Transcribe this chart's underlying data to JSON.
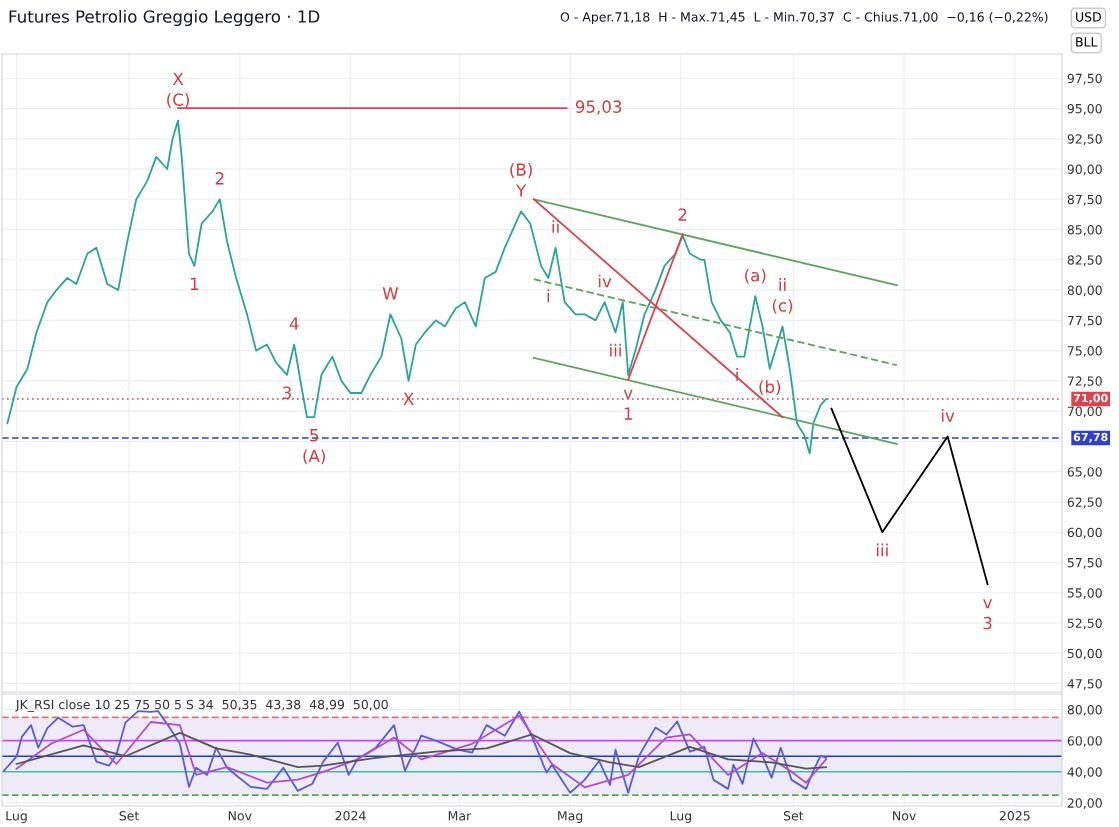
{
  "chart_data": [
    {
      "type": "line",
      "title": "Futures Petrolio Greggio Leggero · 1D",
      "subtitle": "O - Aper.71,18  H - Max.71,45  L - Min.70,37  C - Chius.71,00  −0,16 (−0,22%)",
      "series": [
        {
          "color": "#26a69a",
          "x": [
            "2023-06-26",
            "2023-07-01",
            "2023-07-07",
            "2023-07-12",
            "2023-07-18",
            "2023-07-23",
            "2023-07-29",
            "2023-08-03",
            "2023-08-09",
            "2023-08-14",
            "2023-08-20",
            "2023-08-26",
            "2023-08-31",
            "2023-09-05",
            "2023-09-11",
            "2023-09-16",
            "2023-09-22",
            "2023-09-25",
            "2023-09-28",
            "2023-09-30",
            "2023-10-04",
            "2023-10-07",
            "2023-10-11",
            "2023-10-17",
            "2023-10-21",
            "2023-10-25",
            "2023-10-30",
            "2023-11-05",
            "2023-11-10",
            "2023-11-16",
            "2023-11-21",
            "2023-11-27",
            "2023-12-01",
            "2023-12-05",
            "2023-12-08",
            "2023-12-12",
            "2023-12-16",
            "2023-12-22",
            "2023-12-27",
            "2024-01-01",
            "2024-01-07",
            "2024-01-12",
            "2024-01-18",
            "2024-01-23",
            "2024-01-29",
            "2024-02-02",
            "2024-02-06",
            "2024-02-11",
            "2024-02-17",
            "2024-02-22",
            "2024-02-28",
            "2024-03-04",
            "2024-03-10",
            "2024-03-15",
            "2024-03-21",
            "2024-03-26",
            "2024-04-01",
            "2024-04-04",
            "2024-04-09",
            "2024-04-15",
            "2024-04-19",
            "2024-04-23",
            "2024-04-28",
            "2024-05-04",
            "2024-05-09",
            "2024-05-15",
            "2024-05-20",
            "2024-05-26",
            "2024-05-30",
            "2024-06-02",
            "2024-06-06",
            "2024-06-11",
            "2024-06-17",
            "2024-06-22",
            "2024-06-28",
            "2024-07-02",
            "2024-07-06",
            "2024-07-12",
            "2024-07-14",
            "2024-07-18",
            "2024-07-23",
            "2024-07-28",
            "2024-08-01",
            "2024-08-05",
            "2024-08-11",
            "2024-08-15",
            "2024-08-19",
            "2024-08-22",
            "2024-08-26",
            "2024-08-30",
            "2024-09-03",
            "2024-09-07",
            "2024-09-10",
            "2024-09-12",
            "2024-09-16",
            "2024-09-19"
          ],
          "values": [
            69.0,
            72.0,
            73.5,
            76.5,
            79.0,
            80.0,
            81.0,
            80.5,
            83.0,
            83.5,
            80.5,
            80.0,
            84.0,
            87.5,
            89.0,
            91.0,
            90.0,
            92.5,
            94.0,
            91.0,
            83.0,
            82.0,
            85.5,
            86.5,
            87.5,
            84.0,
            81.0,
            78.0,
            75.0,
            75.5,
            74.0,
            73.0,
            75.5,
            72.0,
            69.5,
            69.5,
            73.0,
            74.5,
            72.5,
            71.5,
            71.5,
            73.0,
            74.5,
            78.0,
            76.0,
            72.5,
            75.5,
            76.5,
            77.5,
            77.0,
            78.5,
            79.0,
            77.0,
            81.0,
            81.5,
            83.5,
            85.5,
            86.5,
            85.5,
            82.0,
            81.0,
            83.5,
            79.0,
            78.0,
            78.0,
            77.5,
            79.0,
            76.5,
            79.0,
            73.0,
            75.0,
            78.0,
            80.0,
            82.0,
            83.0,
            84.5,
            83.0,
            82.5,
            82.5,
            79.0,
            77.5,
            76.5,
            74.5,
            74.5,
            79.5,
            77.0,
            73.5,
            75.0,
            77.0,
            73.5,
            69.0,
            68.0,
            66.5,
            69.0,
            70.5,
            71.0
          ]
        },
        {
          "color": "#e0424b",
          "x": [
            "2023-09-28",
            "2024-04-29"
          ],
          "values": [
            95.03,
            95.03
          ]
        },
        {
          "color": "#5aa55a",
          "x": [
            "2024-04-11",
            "2024-10-28"
          ],
          "values": [
            87.5,
            80.4
          ]
        },
        {
          "color": "#5aa55a",
          "x": [
            "2024-04-11",
            "2024-10-28"
          ],
          "values": [
            74.4,
            67.3
          ]
        },
        {
          "color": "#5aa55a",
          "line_style": "dashed",
          "x": [
            "2024-04-11",
            "2024-10-28"
          ],
          "values": [
            80.9,
            73.8
          ]
        },
        {
          "color": "#e0424b",
          "x": [
            "2024-04-11",
            "2024-08-26"
          ],
          "values": [
            87.5,
            69.5
          ]
        },
        {
          "color": "#e0424b",
          "x": [
            "2024-06-02",
            "2024-07-02"
          ],
          "values": [
            72.6,
            84.6
          ]
        },
        {
          "color": "#000000",
          "x": [
            "2024-09-22",
            "2024-10-20",
            "2024-11-25",
            "2024-12-17"
          ],
          "values": [
            70.2,
            60.0,
            67.9,
            55.7
          ]
        }
      ],
      "xlim": [
        "2023-06-23",
        "2025-01-27"
      ],
      "xticks": [
        {
          "value": "2023-07-01",
          "label": null
        },
        {
          "value": "2023-09-01",
          "label": null
        },
        {
          "value": "2023-11-01",
          "label": null
        },
        {
          "value": "2024-01-01",
          "label": null
        },
        {
          "value": "2024-03-01",
          "label": null
        },
        {
          "value": "2024-05-01",
          "label": null
        },
        {
          "value": "2024-07-01",
          "label": null
        },
        {
          "value": "2024-09-01",
          "label": null
        },
        {
          "value": "2024-11-01",
          "label": null
        },
        {
          "value": "2025-01-01",
          "label": null
        }
      ],
      "ylim": [
        46.8,
        99.5
      ],
      "yticks": [
        {
          "value": 47.5,
          "label": "47,50"
        },
        {
          "value": 50,
          "label": "50,00"
        },
        {
          "value": 52.5,
          "label": "52,50"
        },
        {
          "value": 55,
          "label": "55,00"
        },
        {
          "value": 57.5,
          "label": "57,50"
        },
        {
          "value": 60,
          "label": "60,00"
        },
        {
          "value": 62.5,
          "label": "62,50"
        },
        {
          "value": 65,
          "label": "65,00"
        },
        {
          "value": 67.5,
          "label": null
        },
        {
          "value": 70,
          "label": "70,00"
        },
        {
          "value": 72.5,
          "label": "72,50"
        },
        {
          "value": 75,
          "label": "75,00"
        },
        {
          "value": 77.5,
          "label": "77,50"
        },
        {
          "value": 80,
          "label": "80,00"
        },
        {
          "value": 82.5,
          "label": "82,50"
        },
        {
          "value": 85,
          "label": "85,00"
        },
        {
          "value": 87.5,
          "label": "87,50"
        },
        {
          "value": 90,
          "label": "90,00"
        },
        {
          "value": 92.5,
          "label": "92,50"
        },
        {
          "value": 95,
          "label": "95,00"
        },
        {
          "value": 97.5,
          "label": "97,50"
        }
      ],
      "tick_labels": "y",
      "grid": true,
      "marker": "none",
      "line_style": "solid",
      "ref_lines": [
        {
          "axis": "y",
          "value": 67.78,
          "label": "67,78",
          "color": "#2f3fd0",
          "line_style": "dashed"
        },
        {
          "axis": "y",
          "value": 71.0,
          "label": "71,00",
          "color": "#e0424b",
          "line_style": "dotted"
        }
      ],
      "annotations": [
        "USD",
        "BLL",
        {
          "text": "95,03",
          "x": "2024-04-29",
          "y": 95.03
        },
        {
          "text": "(C)",
          "x": "2023-09-28",
          "y": 94.0
        },
        {
          "text": "X",
          "x": "2023-09-28",
          "y": 94.0
        },
        {
          "text": "2",
          "x": "2023-10-21",
          "y": 87.5
        },
        {
          "text": "1",
          "x": "2023-10-07",
          "y": 82.0
        },
        {
          "text": "4",
          "x": "2023-12-01",
          "y": 75.5
        },
        {
          "text": "3",
          "x": "2023-11-27",
          "y": 73.0
        },
        {
          "text": "5",
          "x": "2023-12-12",
          "y": 69.5
        },
        {
          "text": "(A)",
          "x": "2023-12-12",
          "y": 69.5
        },
        {
          "text": "W",
          "x": "2024-01-23",
          "y": 78.0
        },
        {
          "text": "X",
          "x": "2024-02-02",
          "y": 72.5
        },
        {
          "text": "Y",
          "x": "2024-04-04",
          "y": 86.5
        },
        {
          "text": "(B)",
          "x": "2024-04-04",
          "y": 86.5
        },
        {
          "text": "ii",
          "x": "2024-04-23",
          "y": 83.5
        },
        {
          "text": "iv",
          "x": "2024-05-20",
          "y": 79.0
        },
        {
          "text": "i",
          "x": "2024-04-19",
          "y": 81.0
        },
        {
          "text": "iii",
          "x": "2024-05-26",
          "y": 76.5
        },
        {
          "text": "v",
          "x": "2024-06-02",
          "y": 73.0
        },
        {
          "text": "1",
          "x": "2024-06-02",
          "y": 73.0
        },
        {
          "text": "2",
          "x": "2024-07-02",
          "y": 84.5
        },
        {
          "text": "(a)",
          "x": "2024-08-11",
          "y": 79.5
        },
        {
          "text": "(c)",
          "x": "2024-08-26",
          "y": 77.0
        },
        {
          "text": "ii",
          "x": "2024-08-26",
          "y": 77.0
        },
        {
          "text": "(b)",
          "x": "2024-08-19",
          "y": 73.5
        },
        {
          "text": "i",
          "x": "2024-08-01",
          "y": 74.5
        },
        {
          "text": "iii",
          "x": "2024-10-20",
          "y": 60.0
        },
        {
          "text": "iv",
          "x": "2024-11-25",
          "y": 67.9
        },
        {
          "text": "v",
          "x": "2024-12-17",
          "y": 55.7
        },
        {
          "text": "3",
          "x": "2024-12-17",
          "y": 55.7
        }
      ]
    },
    {
      "type": "line",
      "series": [
        {
          "color": "#5b5bd6",
          "x": [
            "2023-06-24",
            "2023-07-01",
            "2023-07-04",
            "2023-07-09",
            "2023-07-13",
            "2023-07-18",
            "2023-07-24",
            "2023-08-01",
            "2023-08-07",
            "2023-08-14",
            "2023-08-21",
            "2023-08-25",
            "2023-08-30",
            "2023-09-06",
            "2023-09-13",
            "2023-09-17",
            "2023-09-23",
            "2023-09-29",
            "2023-10-04",
            "2023-10-08",
            "2023-10-14",
            "2023-10-19",
            "2023-10-25",
            "2023-10-31",
            "2023-11-07",
            "2023-11-16",
            "2023-11-25",
            "2023-12-03",
            "2023-12-11",
            "2023-12-17",
            "2023-12-25",
            "2023-12-31",
            "2024-01-05",
            "2024-01-15",
            "2024-01-25",
            "2024-01-31",
            "2024-02-09",
            "2024-02-17",
            "2024-02-29",
            "2024-03-08",
            "2024-03-16",
            "2024-03-26",
            "2024-04-03",
            "2024-04-10",
            "2024-04-18",
            "2024-04-21",
            "2024-05-01",
            "2024-05-09",
            "2024-05-17",
            "2024-05-23",
            "2024-05-26",
            "2024-06-02",
            "2024-06-08",
            "2024-06-17",
            "2024-06-23",
            "2024-06-29",
            "2024-07-06",
            "2024-07-14",
            "2024-07-19",
            "2024-07-27",
            "2024-07-30",
            "2024-08-04",
            "2024-08-10",
            "2024-08-15",
            "2024-08-20",
            "2024-08-25",
            "2024-08-31",
            "2024-09-08",
            "2024-09-12",
            "2024-09-16",
            "2024-09-19"
          ],
          "values": [
            40.6,
            49.7,
            62.6,
            70,
            55.5,
            68,
            74.8,
            69,
            70,
            46.5,
            44,
            51,
            71.6,
            79,
            78.5,
            79,
            69,
            58,
            30.3,
            42.6,
            38,
            55.5,
            42.6,
            36.8,
            30.3,
            29,
            42.6,
            27.7,
            32.3,
            46.5,
            58.7,
            38,
            48.4,
            55.5,
            70,
            40.6,
            63.2,
            60,
            54.2,
            52.3,
            70,
            63.2,
            78.7,
            62.6,
            39.4,
            44.5,
            26.5,
            34.8,
            47,
            31.6,
            54.2,
            26.5,
            50.3,
            68.4,
            63.9,
            72.3,
            52.9,
            56,
            34.8,
            29,
            44.5,
            32.3,
            61.3,
            50.3,
            36.1,
            55.5,
            34.8,
            29,
            40.6,
            50.3,
            49
          ]
        },
        {
          "color": "#b04cd0",
          "x": [
            "2023-07-01",
            "2023-07-20",
            "2023-08-07",
            "2023-08-25",
            "2023-09-13",
            "2023-09-29",
            "2023-10-08",
            "2023-10-25",
            "2023-11-16",
            "2023-12-03",
            "2023-12-17",
            "2024-01-05",
            "2024-01-25",
            "2024-02-09",
            "2024-03-08",
            "2024-04-03",
            "2024-04-21",
            "2024-05-09",
            "2024-06-02",
            "2024-06-23",
            "2024-07-06",
            "2024-07-27",
            "2024-08-15",
            "2024-08-31",
            "2024-09-08",
            "2024-09-19"
          ],
          "values": [
            42,
            58,
            67,
            45,
            72,
            70,
            38,
            43,
            33,
            35,
            40,
            48,
            62,
            48,
            58,
            76,
            45,
            30,
            38,
            62,
            64,
            38,
            52,
            40,
            33,
            48
          ]
        },
        {
          "color": "#555555",
          "x": [
            "2023-07-01",
            "2023-08-07",
            "2023-08-30",
            "2023-09-29",
            "2023-10-19",
            "2023-11-07",
            "2023-12-03",
            "2023-12-17",
            "2024-01-15",
            "2024-02-17",
            "2024-03-16",
            "2024-04-10",
            "2024-05-01",
            "2024-05-23",
            "2024-06-08",
            "2024-07-06",
            "2024-07-27",
            "2024-08-20",
            "2024-09-08",
            "2024-09-19"
          ],
          "values": [
            45,
            57,
            50,
            65,
            55,
            51,
            43,
            44,
            49,
            53,
            55,
            64,
            52,
            46,
            43,
            56,
            48,
            46,
            42,
            43
          ]
        }
      ],
      "xlim": [
        "2023-06-23",
        "2025-01-27"
      ],
      "xticks": [
        {
          "value": "2023-07-01",
          "label": "Lug"
        },
        {
          "value": "2023-09-01",
          "label": "Set"
        },
        {
          "value": "2023-11-01",
          "label": "Nov"
        },
        {
          "value": "2024-01-01",
          "label": "2024"
        },
        {
          "value": "2024-03-01",
          "label": "Mar"
        },
        {
          "value": "2024-05-01",
          "label": "Mag"
        },
        {
          "value": "2024-07-01",
          "label": "Lug"
        },
        {
          "value": "2024-09-01",
          "label": "Set"
        },
        {
          "value": "2024-11-01",
          "label": "Nov"
        },
        {
          "value": "2025-01-01",
          "label": "2025"
        }
      ],
      "ylim": [
        18,
        90
      ],
      "yticks": [
        {
          "value": 20,
          "label": "20,00"
        },
        {
          "value": 40,
          "label": "40,00"
        },
        {
          "value": 60,
          "label": "60,00"
        },
        {
          "value": 80,
          "label": "80,00"
        }
      ],
      "grid": true,
      "marker": "none",
      "line_style": "solid",
      "ref_lines": [
        {
          "axis": "y",
          "value": 75,
          "color": "#e57373",
          "line_style": "dashed"
        },
        {
          "axis": "y",
          "value": 60,
          "color": "#c050e0",
          "line_style": "solid"
        },
        {
          "axis": "y",
          "value": 50,
          "color": "#1f3fbf",
          "line_style": "solid"
        },
        {
          "axis": "y",
          "value": 40,
          "color": "#3fbf9f",
          "line_style": "solid"
        },
        {
          "axis": "y",
          "value": 25,
          "color": "#5aa55a",
          "line_style": "dashed"
        }
      ],
      "bands": [
        {
          "axis": "y",
          "from": 25,
          "to": 75,
          "color": "#efeaf8"
        }
      ],
      "annotations": [
        "JK_RSI close 10 25 75 50 5 S 34  50,35  43,38  48,99  50,00"
      ]
    }
  ]
}
